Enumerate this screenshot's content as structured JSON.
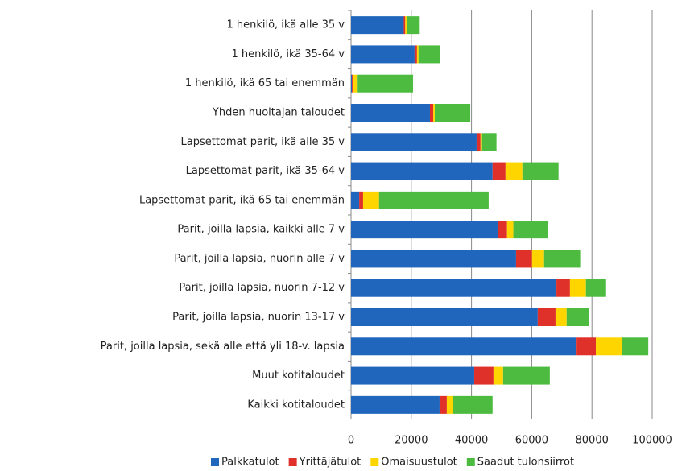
{
  "chart_data": {
    "type": "stacked_barh",
    "categories": [
      "1 henkilö, ikä alle  35 v",
      "1 henkilö, ikä 35-64 v",
      "1 henkilö, ikä 65 tai enemmän",
      "Yhden huoltajan taloudet",
      "Lapsettomat parit, ikä alle 35 v",
      "Lapsettomat parit, ikä 35-64 v",
      "Lapsettomat parit, ikä 65 tai enemmän",
      "Parit, joilla lapsia, kaikki alle 7 v",
      "Parit, joilla lapsia, nuorin alle 7 v",
      "Parit, joilla lapsia, nuorin 7-12 v",
      "Parit, joilla lapsia, nuorin 13-17 v",
      "Parit, joilla lapsia, sekä alle että yli 18-v. lapsia",
      "Muut kotitaloudet",
      "Kaikki kotitaloudet"
    ],
    "series": [
      {
        "name": "Palkkatulot",
        "color": "#2166bd",
        "values": [
          17500,
          21100,
          300,
          26200,
          41700,
          47000,
          2700,
          48900,
          54800,
          68200,
          62000,
          74900,
          40900,
          29400
        ]
      },
      {
        "name": "Yrittäjätulot",
        "color": "#e0302a",
        "values": [
          500,
          800,
          300,
          1100,
          1300,
          4300,
          1300,
          2900,
          5300,
          4500,
          5900,
          6400,
          6400,
          2400
        ]
      },
      {
        "name": "Omaisuustulot",
        "color": "#ffd500",
        "values": [
          500,
          500,
          1600,
          500,
          500,
          5600,
          5300,
          2100,
          4000,
          5300,
          3700,
          8800,
          3200,
          2100
        ]
      },
      {
        "name": "Saadut tulonsiirrot",
        "color": "#4cbb3f",
        "values": [
          4300,
          7200,
          18400,
          11800,
          4800,
          12000,
          36400,
          11500,
          12000,
          6700,
          7500,
          8600,
          15500,
          13100
        ]
      }
    ],
    "xlim": [
      0,
      100000
    ],
    "xticks": [
      0,
      20000,
      40000,
      60000,
      80000,
      100000
    ],
    "grid": true,
    "legend": "bottom"
  }
}
